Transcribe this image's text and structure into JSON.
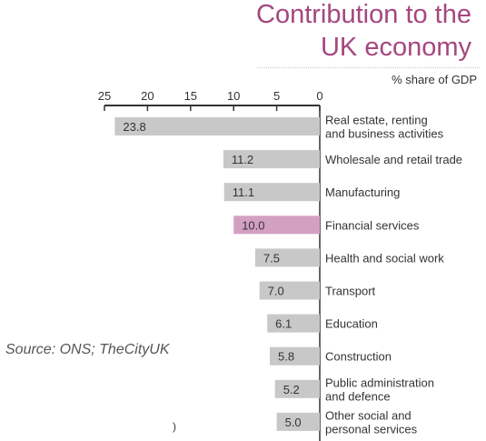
{
  "title_line1": "Contribution to the",
  "title_line2": "UK economy",
  "unit_label": "% share of GDP",
  "source": "Source: ONS; TheCityUK",
  "stray_char": ")",
  "colors": {
    "bar": "#c8c8c8",
    "highlight": "#d4a0c2",
    "title": "#a4477f",
    "axis": "#333333"
  },
  "chart_data": {
    "type": "bar",
    "orientation": "horizontal",
    "title": "Contribution to the UK economy",
    "xlabel": "% share of GDP",
    "ylabel": "",
    "xlim": [
      0,
      25
    ],
    "x_reversed": true,
    "ticks": [
      25,
      20,
      15,
      10,
      5,
      0
    ],
    "highlight_category": "Financial services",
    "categories": [
      [
        "Real estate, renting",
        "and business activities"
      ],
      [
        "Wholesale and retail trade"
      ],
      [
        "Manufacturing"
      ],
      [
        "Financial services"
      ],
      [
        "Health and social work"
      ],
      [
        "Transport"
      ],
      [
        "Education"
      ],
      [
        "Construction"
      ],
      [
        "Public administration",
        "and defence"
      ],
      [
        "Other social and",
        "personal services"
      ]
    ],
    "values": [
      23.8,
      11.2,
      11.1,
      10.0,
      7.5,
      7.0,
      6.1,
      5.8,
      5.2,
      5.0
    ],
    "value_labels": [
      "23.8",
      "11.2",
      "11.1",
      "10.0",
      "7.5",
      "7.0",
      "6.1",
      "5.8",
      "5.2",
      "5.0"
    ]
  }
}
